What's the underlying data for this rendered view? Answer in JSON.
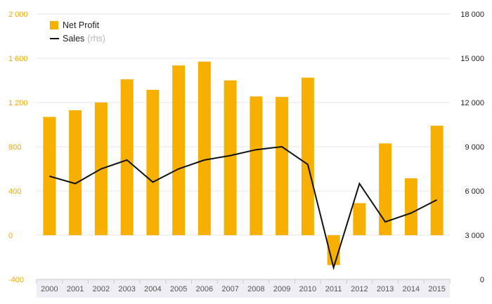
{
  "chart_data": {
    "type": "bar",
    "categories": [
      "2000",
      "2001",
      "2002",
      "2003",
      "2004",
      "2005",
      "2006",
      "2007",
      "2008",
      "2009",
      "2010",
      "2011",
      "2012",
      "2013",
      "2014",
      "2015"
    ],
    "series": [
      {
        "name": "Net Profit",
        "type": "bar",
        "axis": "left",
        "color": "#f7b000",
        "values": [
          1070,
          1130,
          1200,
          1410,
          1315,
          1535,
          1570,
          1400,
          1255,
          1250,
          1425,
          -270,
          290,
          830,
          515,
          990
        ]
      },
      {
        "name": "Sales",
        "axis_note": "(rhs)",
        "type": "line",
        "axis": "right",
        "color": "#111111",
        "values": [
          7000,
          6500,
          7500,
          8100,
          6600,
          7500,
          8100,
          8400,
          8800,
          9000,
          7800,
          800,
          6500,
          3900,
          4500,
          5400
        ]
      }
    ],
    "y_left": {
      "ylim": [
        -400,
        2000
      ],
      "ticks": [
        "-400",
        "0",
        "400",
        "800",
        "1 200",
        "1 600",
        "2 000"
      ],
      "tick_values": [
        -400,
        0,
        400,
        800,
        1200,
        1600,
        2000
      ]
    },
    "y_right": {
      "ylim": [
        0,
        18000
      ],
      "ticks": [
        "0",
        "3 000",
        "6 000",
        "9 000",
        "12 000",
        "15 000",
        "18 000"
      ],
      "tick_values": [
        0,
        3000,
        6000,
        9000,
        12000,
        15000,
        18000
      ]
    },
    "grid": true,
    "legend_position": "top-left",
    "title": "",
    "xlabel": "",
    "ylabel": ""
  }
}
